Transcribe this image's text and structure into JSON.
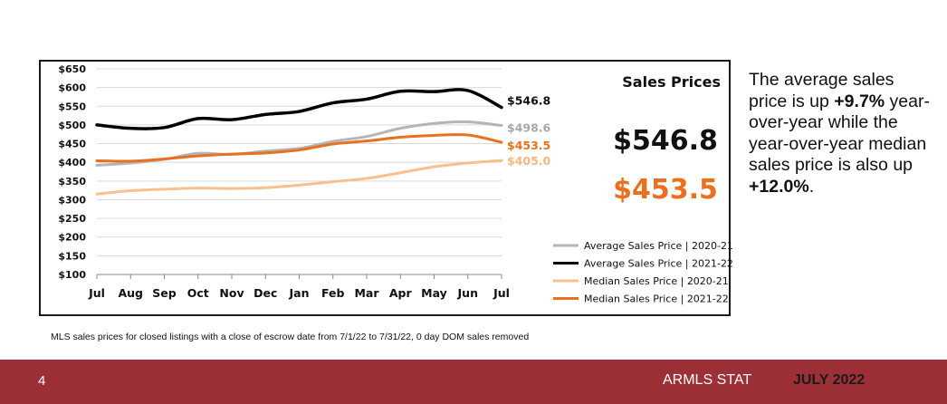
{
  "chart_data": {
    "type": "line",
    "title": "Sales Prices",
    "categories": [
      "Jul",
      "Aug",
      "Sep",
      "Oct",
      "Nov",
      "Dec",
      "Jan",
      "Feb",
      "Mar",
      "Apr",
      "May",
      "Jun",
      "Jul"
    ],
    "yticks": [
      "$650",
      "$600",
      "$550",
      "$500",
      "$450",
      "$400",
      "$350",
      "$300",
      "$250",
      "$200",
      "$150",
      "$100"
    ],
    "ylim": [
      100,
      650
    ],
    "grid": true,
    "legend_position": "bottom-right",
    "series": [
      {
        "name": "Average Sales Price | 2020-21",
        "color": "#b5b5b5",
        "values": [
          392,
          398,
          408,
          424,
          421,
          430,
          437,
          456,
          469,
          491,
          504,
          508,
          498.6
        ],
        "end_label": "$498.6"
      },
      {
        "name": "Average Sales Price | 2021-22",
        "color": "#000000",
        "values": [
          500,
          491,
          493,
          517,
          514,
          528,
          536,
          559,
          569,
          590,
          589,
          592,
          546.8
        ],
        "end_label": "$546.8"
      },
      {
        "name": "Median Sales Price | 2020-21",
        "color": "#f8c08c",
        "values": [
          315,
          324,
          328,
          331,
          330,
          332,
          339,
          348,
          357,
          372,
          388,
          398,
          405.0
        ],
        "end_label": "$405.0"
      },
      {
        "name": "Median Sales Price | 2021-22",
        "color": "#e8701e",
        "values": [
          404,
          403,
          409,
          417,
          422,
          425,
          433,
          449,
          457,
          467,
          472,
          473,
          453.5
        ],
        "end_label": "$453.5"
      }
    ]
  },
  "summary": {
    "avg_value": "$546.8",
    "median_value": "$453.5",
    "median_color": "#e8701e"
  },
  "commentary": {
    "line1": "The average sales price is up ",
    "pct_avg": "+9.7%",
    "line2": " year-over-year while the year-over-year median sales price is also up ",
    "pct_median": "+12.0%",
    "line3": "."
  },
  "footnote": "MLS sales prices for closed listings with a close of escrow date from 7/1/22 to 7/31/22, 0 day DOM sales removed",
  "footer": {
    "page_number": "4",
    "brand": "ARMLS STAT",
    "date": "JULY 2022",
    "bar_color": "#9c3036"
  }
}
